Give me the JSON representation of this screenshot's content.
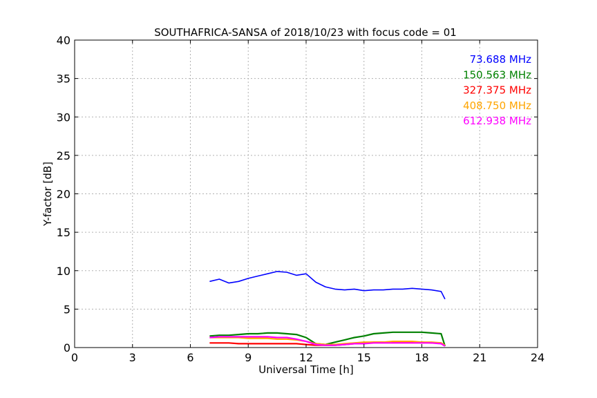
{
  "chart_data": {
    "type": "line",
    "title": "SOUTHAFRICA-SANSA of 2018/10/23 with focus code = 01",
    "xlabel": "Universal Time [h]",
    "ylabel": "Y-factor [dB]",
    "xlim": [
      0,
      24
    ],
    "ylim": [
      0,
      40
    ],
    "xticks": [
      0,
      3,
      6,
      9,
      12,
      15,
      18,
      21,
      24
    ],
    "yticks": [
      0,
      5,
      10,
      15,
      20,
      25,
      30,
      35,
      40
    ],
    "grid": true,
    "legend_placement": "top-right",
    "series": [
      {
        "name": "73.688 MHz",
        "color": "#0000ff",
        "x": [
          7.0,
          7.5,
          8.0,
          8.5,
          9.0,
          9.5,
          10.0,
          10.5,
          11.0,
          11.5,
          12.0,
          12.5,
          13.0,
          13.5,
          14.0,
          14.5,
          15.0,
          15.5,
          16.0,
          16.5,
          17.0,
          17.5,
          18.0,
          18.5,
          19.0,
          19.2
        ],
        "values": [
          8.6,
          8.9,
          8.4,
          8.6,
          9.0,
          9.3,
          9.6,
          9.9,
          9.8,
          9.4,
          9.6,
          8.5,
          7.9,
          7.6,
          7.5,
          7.6,
          7.4,
          7.5,
          7.5,
          7.6,
          7.6,
          7.7,
          7.6,
          7.5,
          7.3,
          6.3
        ]
      },
      {
        "name": "150.563 MHz",
        "color": "#008000",
        "x": [
          7.0,
          7.5,
          8.0,
          8.5,
          9.0,
          9.5,
          10.0,
          10.5,
          11.0,
          11.5,
          12.0,
          12.5,
          13.0,
          13.5,
          14.0,
          14.5,
          15.0,
          15.5,
          16.0,
          16.5,
          17.0,
          17.5,
          18.0,
          18.5,
          19.0,
          19.2
        ],
        "values": [
          1.5,
          1.6,
          1.6,
          1.7,
          1.8,
          1.8,
          1.9,
          1.9,
          1.8,
          1.7,
          1.3,
          0.5,
          0.4,
          0.7,
          1.0,
          1.3,
          1.5,
          1.8,
          1.9,
          2.0,
          2.0,
          2.0,
          2.0,
          1.9,
          1.8,
          0.2
        ]
      },
      {
        "name": "327.375 MHz",
        "color": "#ff0000",
        "x": [
          7.0,
          7.5,
          8.0,
          8.5,
          9.0,
          9.5,
          10.0,
          10.5,
          11.0,
          11.5,
          12.0,
          12.5,
          13.0,
          13.5,
          14.0,
          14.5,
          15.0,
          15.5,
          16.0,
          16.5,
          17.0,
          17.5,
          18.0,
          18.5,
          19.0,
          19.2
        ],
        "values": [
          0.6,
          0.6,
          0.6,
          0.5,
          0.5,
          0.5,
          0.5,
          0.5,
          0.5,
          0.5,
          0.4,
          0.3,
          0.3,
          0.3,
          0.4,
          0.5,
          0.6,
          0.7,
          0.7,
          0.7,
          0.7,
          0.7,
          0.7,
          0.6,
          0.6,
          0.2
        ]
      },
      {
        "name": "408.750 MHz",
        "color": "#ffa500",
        "x": [
          7.0,
          7.5,
          8.0,
          8.5,
          9.0,
          9.5,
          10.0,
          10.5,
          11.0,
          11.5,
          12.0,
          12.5,
          13.0,
          13.5,
          14.0,
          14.5,
          15.0,
          15.5,
          16.0,
          16.5,
          17.0,
          17.5,
          18.0,
          18.5,
          19.0,
          19.2
        ],
        "values": [
          1.3,
          1.3,
          1.3,
          1.3,
          1.2,
          1.2,
          1.2,
          1.1,
          1.1,
          1.0,
          0.8,
          0.5,
          0.4,
          0.4,
          0.5,
          0.6,
          0.7,
          0.7,
          0.7,
          0.8,
          0.8,
          0.8,
          0.7,
          0.7,
          0.6,
          0.3
        ]
      },
      {
        "name": "612.938 MHz",
        "color": "#ff00ff",
        "x": [
          7.0,
          7.5,
          8.0,
          8.5,
          9.0,
          9.5,
          10.0,
          10.5,
          11.0,
          11.5,
          12.0,
          12.5,
          13.0,
          13.5,
          14.0,
          14.5,
          15.0,
          15.5,
          16.0,
          16.5,
          17.0,
          17.5,
          18.0,
          18.5,
          19.0,
          19.2
        ],
        "values": [
          1.3,
          1.4,
          1.4,
          1.4,
          1.4,
          1.4,
          1.4,
          1.3,
          1.3,
          1.1,
          0.8,
          0.4,
          0.3,
          0.3,
          0.4,
          0.5,
          0.5,
          0.6,
          0.6,
          0.6,
          0.6,
          0.6,
          0.6,
          0.6,
          0.5,
          0.2
        ]
      }
    ]
  }
}
